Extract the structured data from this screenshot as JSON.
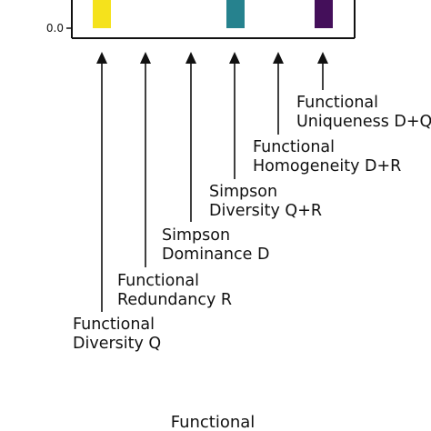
{
  "chart_data": {
    "type": "bar",
    "y_tick_label": "0.0",
    "bar_colors": [
      "#f5e21c",
      "#26828e",
      "#440f5a"
    ],
    "indices": [
      {
        "line1": "Functional",
        "line2": "Diversity Q"
      },
      {
        "line1": "Functional",
        "line2": "Redundancy R"
      },
      {
        "line1": "Simpson",
        "line2": "Dominance D"
      },
      {
        "line1": "Simpson",
        "line2": "Diversity Q+R"
      },
      {
        "line1": "Functional",
        "line2": "Homogeneity D+R"
      },
      {
        "line1": "Functional",
        "line2": "Uniqueness D+Q"
      }
    ]
  },
  "bottom_caption": "Functional"
}
